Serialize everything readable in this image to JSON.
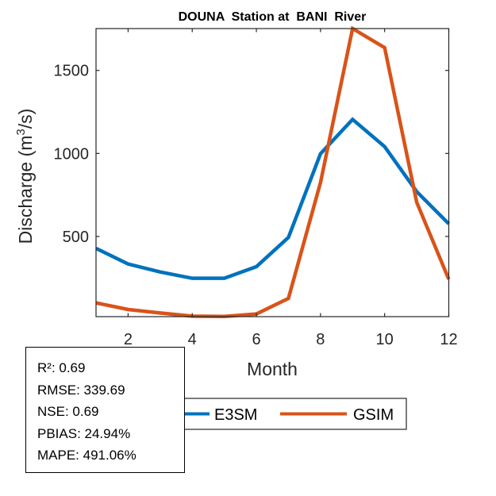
{
  "chart_data": {
    "type": "line",
    "title": "DOUNA  Station at  BANI  River",
    "xlabel": "Month",
    "ylabel_main": "Discharge (m",
    "ylabel_sup": "3",
    "ylabel_tail": "/s)",
    "xlim": [
      1,
      12
    ],
    "ylim": [
      17,
      1752
    ],
    "xticks": [
      2,
      4,
      6,
      8,
      10,
      12
    ],
    "yticks": [
      500,
      1000,
      1500
    ],
    "grid": false,
    "legend_position": "bottom-center (outside)",
    "x": [
      1,
      2,
      3,
      4,
      5,
      6,
      7,
      8,
      9,
      10,
      11,
      12
    ],
    "series": [
      {
        "name": "E3SM",
        "color": "#0072BD",
        "values": [
          428,
          334,
          286,
          248,
          248,
          318,
          494,
          998,
          1205,
          1041,
          770,
          576
        ]
      },
      {
        "name": "GSIM",
        "color": "#D95319",
        "values": [
          100,
          60,
          39,
          20,
          18,
          33,
          127,
          825,
          1752,
          1637,
          706,
          242
        ]
      }
    ]
  },
  "stats": {
    "r2": "R²: 0.69",
    "rmse": "RMSE: 339.69",
    "nse": "NSE: 0.69",
    "pbias": "PBIAS: 24.94%",
    "mape": "MAPE: 491.06%"
  }
}
